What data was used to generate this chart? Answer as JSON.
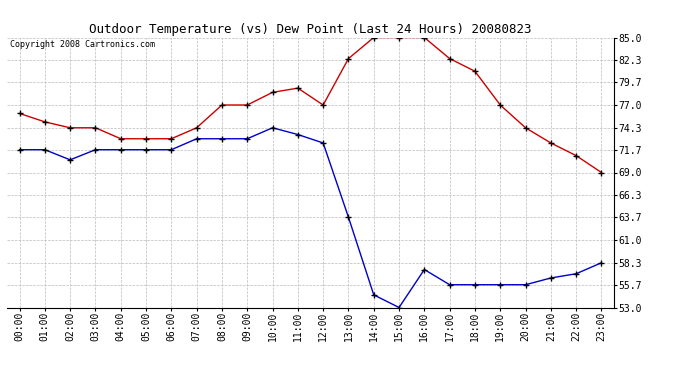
{
  "title": "Outdoor Temperature (vs) Dew Point (Last 24 Hours) 20080823",
  "copyright_text": "Copyright 2008 Cartronics.com",
  "x_labels": [
    "00:00",
    "01:00",
    "02:00",
    "03:00",
    "04:00",
    "05:00",
    "06:00",
    "07:00",
    "08:00",
    "09:00",
    "10:00",
    "11:00",
    "12:00",
    "13:00",
    "14:00",
    "15:00",
    "16:00",
    "17:00",
    "18:00",
    "19:00",
    "20:00",
    "21:00",
    "22:00",
    "23:00"
  ],
  "temp_data": [
    76.0,
    75.0,
    74.3,
    74.3,
    73.0,
    73.0,
    73.0,
    74.3,
    77.0,
    77.0,
    78.5,
    79.0,
    77.0,
    82.5,
    85.0,
    85.0,
    85.0,
    82.5,
    81.0,
    77.0,
    74.3,
    72.5,
    71.0,
    69.0
  ],
  "dew_data": [
    71.7,
    71.7,
    70.5,
    71.7,
    71.7,
    71.7,
    71.7,
    73.0,
    73.0,
    73.0,
    74.3,
    73.5,
    72.5,
    63.7,
    54.5,
    53.0,
    57.5,
    55.7,
    55.7,
    55.7,
    55.7,
    56.5,
    57.0,
    58.3
  ],
  "temp_color": "#cc0000",
  "dew_color": "#0000cc",
  "bg_color": "#ffffff",
  "grid_color": "#bbbbbb",
  "ylim_min": 53.0,
  "ylim_max": 85.0,
  "yticks": [
    53.0,
    55.7,
    58.3,
    61.0,
    63.7,
    66.3,
    69.0,
    71.7,
    74.3,
    77.0,
    79.7,
    82.3,
    85.0
  ],
  "title_fontsize": 9,
  "tick_fontsize": 7,
  "copyright_fontsize": 6
}
